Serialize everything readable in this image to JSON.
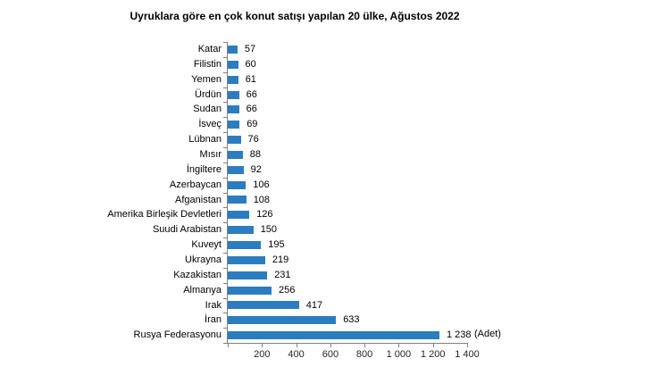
{
  "title": "Uyruklara göre en çok konut satışı yapılan 20 ülke, Ağustos 2022",
  "chart_data": {
    "type": "bar",
    "orientation": "horizontal",
    "title": "Uyruklara göre en çok konut satışı yapılan 20 ülke, Ağustos 2022",
    "categories": [
      "Katar",
      "Filistin",
      "Yemen",
      "Ürdün",
      "Sudan",
      "İsveç",
      "Lübnan",
      "Mısır",
      "İngiltere",
      "Azerbaycan",
      "Afganistan",
      "Amerika Birleşik Devletleri",
      "Suudi Arabistan",
      "Kuveyt",
      "Ukrayna",
      "Kazakistan",
      "Almanya",
      "Irak",
      "İran",
      "Rusya Federasyonu"
    ],
    "values": [
      57,
      60,
      61,
      66,
      66,
      69,
      76,
      88,
      92,
      106,
      108,
      126,
      150,
      195,
      219,
      231,
      256,
      417,
      633,
      1238
    ],
    "value_labels": [
      "57",
      "60",
      "61",
      "66",
      "66",
      "69",
      "76",
      "88",
      "92",
      "106",
      "108",
      "126",
      "150",
      "195",
      "219",
      "231",
      "256",
      "417",
      "633",
      "1 238"
    ],
    "xlabel": "",
    "ylabel": "",
    "unit_label": "(Adet)",
    "xlim": [
      0,
      1400
    ],
    "xticks": [
      0,
      200,
      400,
      600,
      800,
      1000,
      1200,
      1400
    ],
    "xtick_labels": [
      "",
      "200",
      "400",
      "600",
      "800",
      "1 000",
      "1 200",
      "1 400"
    ],
    "grid": false,
    "legend": "none",
    "bar_color": "#2b7dbf",
    "axis_color": "#808080",
    "text_color": "#000000"
  }
}
